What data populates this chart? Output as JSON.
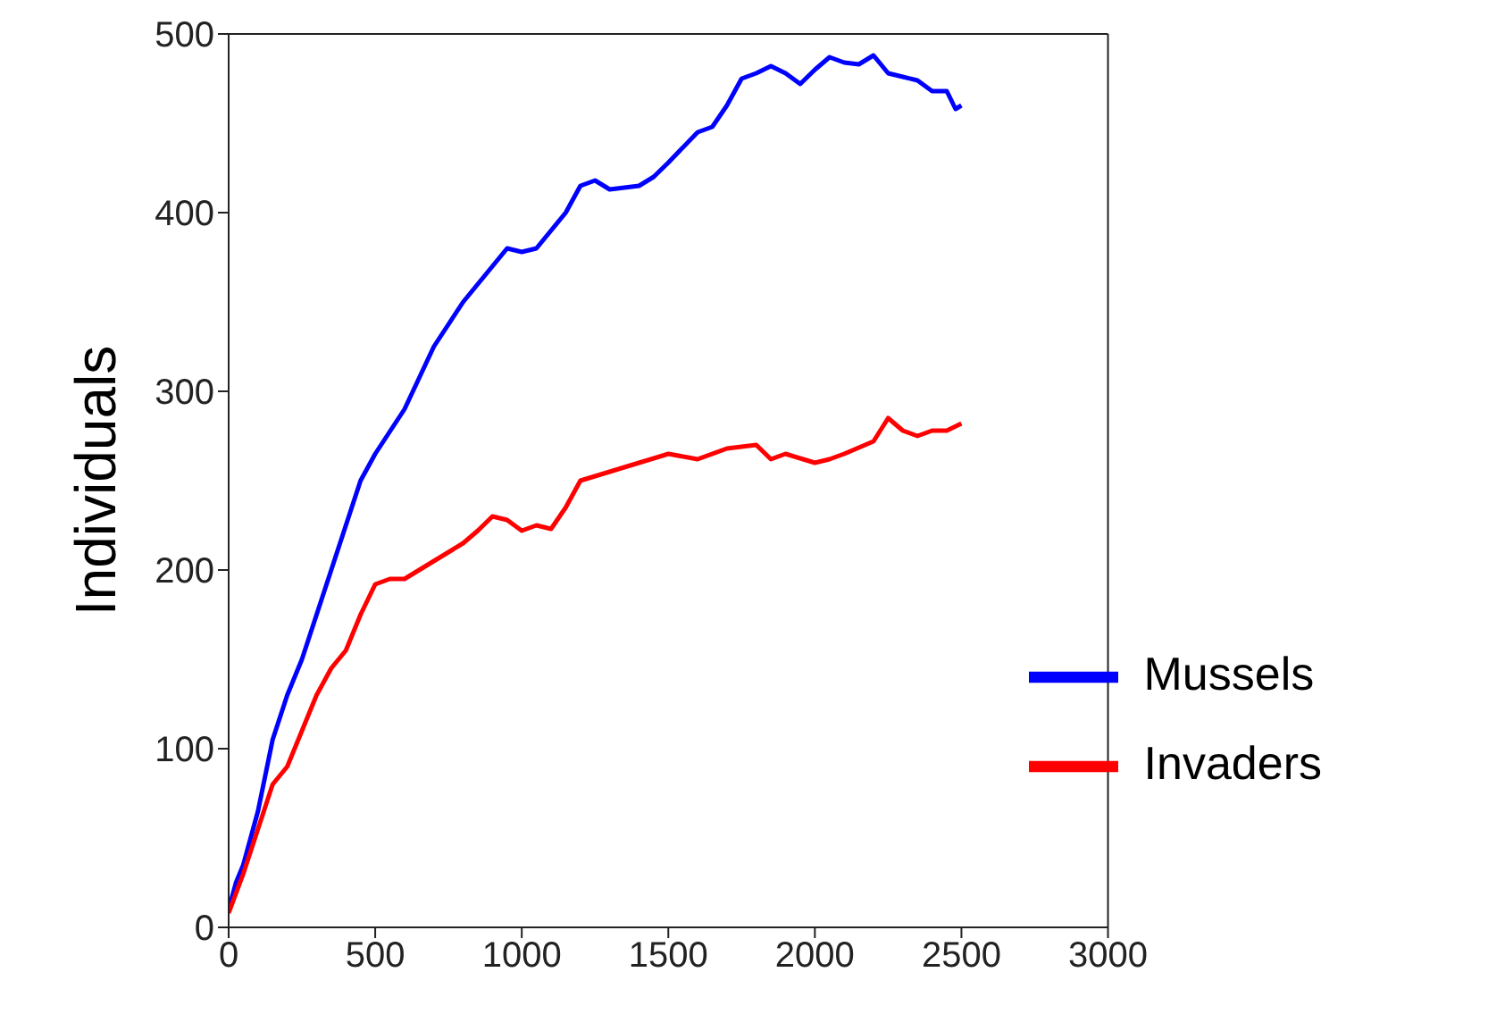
{
  "chart_data": {
    "type": "line",
    "ylabel": "Individuals",
    "xlim": [
      0,
      3000
    ],
    "xticks": [
      0,
      500,
      1000,
      1500,
      2000,
      2500,
      3000
    ],
    "ylim": [
      0,
      500
    ],
    "yticks": [
      0,
      100,
      200,
      300,
      400,
      500
    ],
    "legend": "bottom right",
    "marker": "none",
    "line_style": "solid",
    "series": [
      {
        "name": "Mussels",
        "color": "#0000ff",
        "x": [
          0,
          25,
          50,
          100,
          150,
          200,
          250,
          300,
          350,
          400,
          450,
          500,
          600,
          700,
          800,
          900,
          950,
          1000,
          1050,
          1100,
          1150,
          1200,
          1250,
          1300,
          1400,
          1450,
          1500,
          1600,
          1650,
          1700,
          1750,
          1800,
          1850,
          1900,
          1950,
          2000,
          2050,
          2100,
          2150,
          2200,
          2250,
          2300,
          2350,
          2400,
          2450,
          2480,
          2500
        ],
        "values": [
          10,
          25,
          35,
          65,
          105,
          130,
          150,
          175,
          200,
          225,
          250,
          265,
          290,
          325,
          350,
          370,
          380,
          378,
          380,
          390,
          400,
          415,
          418,
          413,
          415,
          420,
          428,
          445,
          448,
          460,
          475,
          478,
          482,
          478,
          472,
          480,
          487,
          484,
          483,
          488,
          478,
          476,
          474,
          468,
          468,
          458,
          460
        ]
      },
      {
        "name": "Invaders",
        "color": "#ff0000",
        "x": [
          0,
          50,
          100,
          150,
          200,
          250,
          300,
          350,
          400,
          450,
          500,
          550,
          600,
          650,
          700,
          800,
          850,
          900,
          950,
          1000,
          1050,
          1100,
          1150,
          1200,
          1300,
          1400,
          1500,
          1600,
          1700,
          1800,
          1850,
          1900,
          2000,
          2050,
          2100,
          2200,
          2250,
          2300,
          2350,
          2400,
          2450,
          2500
        ],
        "values": [
          8,
          30,
          55,
          80,
          90,
          110,
          130,
          145,
          155,
          175,
          192,
          195,
          195,
          200,
          205,
          215,
          222,
          230,
          228,
          222,
          225,
          223,
          235,
          250,
          255,
          260,
          265,
          262,
          268,
          270,
          262,
          265,
          260,
          262,
          265,
          272,
          285,
          278,
          275,
          278,
          278,
          282
        ]
      }
    ]
  }
}
